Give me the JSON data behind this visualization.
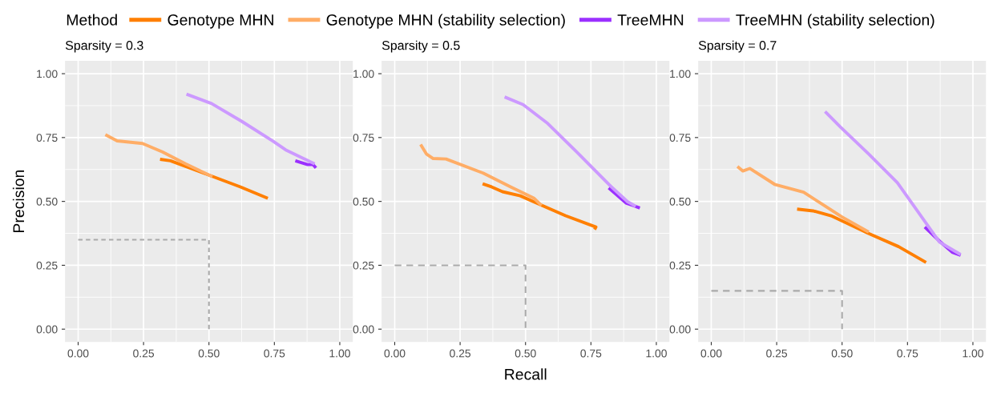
{
  "chart_data": [
    {
      "type": "line",
      "title": "Sparsity = 0.3",
      "ylabel": "Precision",
      "legend_title": "Method",
      "legend": "top",
      "grid": true,
      "xlim": [
        -0.05,
        1.05
      ],
      "ylim": [
        -0.05,
        1.05
      ],
      "xticks": [
        {
          "value": 0,
          "label": "0.00"
        },
        {
          "value": 0.25,
          "label": "0.25"
        },
        {
          "value": 0.5,
          "label": "0.50"
        },
        {
          "value": 0.75,
          "label": "0.75"
        },
        {
          "value": 1,
          "label": "1.00"
        }
      ],
      "yticks": [
        {
          "value": 0,
          "label": "0.00"
        },
        {
          "value": 0.25,
          "label": "0.25"
        },
        {
          "value": 0.5,
          "label": "0.50"
        },
        {
          "value": 0.75,
          "label": "0.75"
        },
        {
          "value": 1,
          "label": "1.00"
        }
      ],
      "series": [
        {
          "name": "Genotype MHN",
          "color": "#ff7f00",
          "x": [
            0.313,
            0.353,
            0.411,
            0.5,
            0.62,
            0.725
          ],
          "values": [
            0.665,
            0.659,
            0.637,
            0.603,
            0.557,
            0.512
          ]
        },
        {
          "name": "Genotype MHN (stability selection)",
          "color": "#ffad66",
          "x": [
            0.104,
            0.149,
            0.246,
            0.322,
            0.411,
            0.513
          ],
          "values": [
            0.761,
            0.737,
            0.727,
            0.694,
            0.647,
            0.597
          ]
        },
        {
          "name": "TreeMHN",
          "color": "#9b30ff",
          "x": [
            0.83,
            0.877,
            0.898,
            0.909
          ],
          "values": [
            0.659,
            0.644,
            0.644,
            0.631
          ]
        },
        {
          "name": "TreeMHN (stability selection)",
          "color": "#cc99ff",
          "x": [
            0.414,
            0.51,
            0.626,
            0.746,
            0.793,
            0.904
          ],
          "values": [
            0.92,
            0.883,
            0.813,
            0.735,
            0.702,
            0.647
          ]
        },
        {
          "color": "#aaaaaa",
          "line_style": "dashed",
          "x": [
            0,
            0.5,
            0.5
          ],
          "values": [
            0.35,
            0.35,
            0
          ]
        }
      ]
    },
    {
      "type": "line",
      "title": "Sparsity = 0.5",
      "xlabel": "Recall",
      "grid": true,
      "xlim": [
        -0.05,
        1.05
      ],
      "ylim": [
        -0.05,
        1.05
      ],
      "xticks": [
        {
          "value": 0,
          "label": "0.00"
        },
        {
          "value": 0.25,
          "label": "0.25"
        },
        {
          "value": 0.5,
          "label": "0.50"
        },
        {
          "value": 0.75,
          "label": "0.75"
        },
        {
          "value": 1,
          "label": "1.00"
        }
      ],
      "yticks": [
        {
          "value": 0,
          "label": "0.00"
        },
        {
          "value": 0.25,
          "label": "0.25"
        },
        {
          "value": 0.5,
          "label": "0.50"
        },
        {
          "value": 0.75,
          "label": "0.75"
        },
        {
          "value": 1,
          "label": "1.00"
        }
      ],
      "series": [
        {
          "color": "#ff7f00",
          "x": [
            0.336,
            0.37,
            0.412,
            0.48,
            0.548,
            0.653,
            0.769,
            0.764
          ],
          "values": [
            0.569,
            0.557,
            0.538,
            0.522,
            0.491,
            0.444,
            0.4,
            0.39
          ]
        },
        {
          "color": "#ffad66",
          "x": [
            0.099,
            0.121,
            0.147,
            0.196,
            0.338,
            0.443,
            0.533,
            0.561
          ],
          "values": [
            0.723,
            0.686,
            0.668,
            0.666,
            0.611,
            0.557,
            0.512,
            0.484
          ]
        },
        {
          "color": "#9b30ff",
          "x": [
            0.818,
            0.884,
            0.911,
            0.937
          ],
          "values": [
            0.553,
            0.494,
            0.484,
            0.474
          ]
        },
        {
          "color": "#cc99ff",
          "x": [
            0.42,
            0.491,
            0.585,
            0.695,
            0.821,
            0.89,
            0.921
          ],
          "values": [
            0.909,
            0.879,
            0.805,
            0.694,
            0.564,
            0.499,
            0.481
          ]
        },
        {
          "color": "#aaaaaa",
          "line_style": "dashed",
          "x": [
            0,
            0.5,
            0.5
          ],
          "values": [
            0.25,
            0.25,
            0
          ]
        }
      ]
    },
    {
      "type": "line",
      "title": "Sparsity = 0.7",
      "grid": true,
      "xlim": [
        -0.05,
        1.05
      ],
      "ylim": [
        -0.05,
        1.05
      ],
      "xticks": [
        {
          "value": 0,
          "label": "0.00"
        },
        {
          "value": 0.25,
          "label": "0.25"
        },
        {
          "value": 0.5,
          "label": "0.50"
        },
        {
          "value": 0.75,
          "label": "0.75"
        },
        {
          "value": 1,
          "label": "1.00"
        }
      ],
      "yticks": [
        {
          "value": 0,
          "label": "0.00"
        },
        {
          "value": 0.25,
          "label": "0.25"
        },
        {
          "value": 0.5,
          "label": "0.50"
        },
        {
          "value": 0.75,
          "label": "0.75"
        },
        {
          "value": 1,
          "label": "1.00"
        }
      ],
      "series": [
        {
          "color": "#ff7f00",
          "x": [
            0.328,
            0.389,
            0.458,
            0.5,
            0.6,
            0.716,
            0.821
          ],
          "values": [
            0.47,
            0.463,
            0.444,
            0.424,
            0.375,
            0.323,
            0.261
          ]
        },
        {
          "color": "#ffad66",
          "x": [
            0.1,
            0.121,
            0.147,
            0.242,
            0.353,
            0.5,
            0.602
          ],
          "values": [
            0.637,
            0.619,
            0.629,
            0.567,
            0.536,
            0.439,
            0.38
          ]
        },
        {
          "color": "#9b30ff",
          "x": [
            0.816,
            0.874,
            0.921,
            0.953
          ],
          "values": [
            0.4,
            0.343,
            0.301,
            0.289
          ]
        },
        {
          "color": "#cc99ff",
          "x": [
            0.435,
            0.495,
            0.6,
            0.711,
            0.872,
            0.953
          ],
          "values": [
            0.852,
            0.79,
            0.687,
            0.574,
            0.341,
            0.292
          ]
        },
        {
          "color": "#aaaaaa",
          "line_style": "dashed",
          "x": [
            0,
            0.5,
            0.5
          ],
          "values": [
            0.15,
            0.15,
            0
          ]
        }
      ]
    }
  ]
}
